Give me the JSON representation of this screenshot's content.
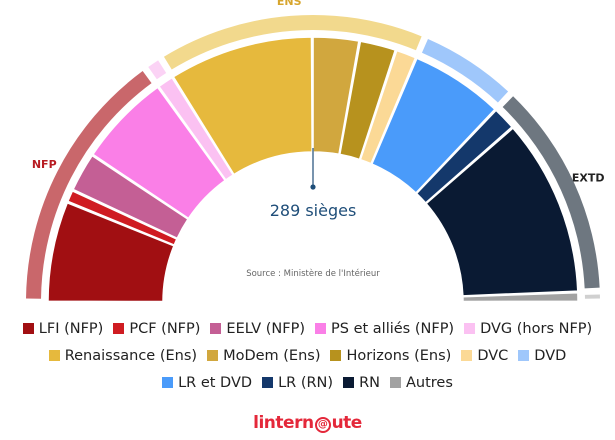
{
  "chart_data": {
    "type": "hemicycle",
    "total_seats": 577,
    "majority_label": "289 sièges",
    "source": "Source : Ministère de l'Intérieur",
    "parties": [
      {
        "name": "LFI (NFP)",
        "seats": 71,
        "color": "#a10f12"
      },
      {
        "name": "PCF (NFP)",
        "seats": 9,
        "color": "#cf1c22"
      },
      {
        "name": "EELV (NFP)",
        "seats": 28,
        "color": "#c45f95"
      },
      {
        "name": "PS et alliés (NFP)",
        "seats": 66,
        "color": "#fa7fe7"
      },
      {
        "name": "DVG (hors NFP)",
        "seats": 12,
        "color": "#fbc1f2"
      },
      {
        "name": "Renaissance (Ens)",
        "seats": 102,
        "color": "#e6b93d"
      },
      {
        "name": "MoDem (Ens)",
        "seats": 33,
        "color": "#d1a73e"
      },
      {
        "name": "Horizons (Ens)",
        "seats": 26,
        "color": "#b7921e"
      },
      {
        "name": "DVC",
        "seats": 15,
        "color": "#fbd996"
      },
      {
        "name": "LR et DVD",
        "seats": 66,
        "color": "#4a9bfa"
      },
      {
        "name": "LR (RN)",
        "seats": 17,
        "color": "#14386b"
      },
      {
        "name": "RN",
        "seats": 125,
        "color": "#0a1a33"
      },
      {
        "name": "Autres",
        "seats": 7,
        "color": "#a2a2a2"
      }
    ],
    "outer_bands": [
      {
        "name": "NFP",
        "seats": 174,
        "color": "#c9676b",
        "label_color": "#b81c22"
      },
      {
        "name": "DVG",
        "seats": 12,
        "color": "#fbd3f5",
        "label_color": "#f07fe0"
      },
      {
        "name": "ENS",
        "seats": 176,
        "color": "#f2d98d",
        "label_color": "#d7a52d"
      },
      {
        "name": "DVD",
        "seats": 66,
        "color": "#9fc7fb",
        "label_color": "#4a9bfa"
      },
      {
        "name": "EXTD",
        "seats": 142,
        "color": "#6e7780",
        "label_color": "#222222"
      },
      {
        "name": "AUT",
        "seats": 7,
        "color": "#d0d0d0",
        "label_color": "#888888"
      }
    ],
    "band_labels_shown": [
      "NFP",
      "ENS",
      "EXTD"
    ]
  },
  "legend": {
    "rows": [
      [
        {
          "label": "LFI (NFP)",
          "color": "#a10f12"
        },
        {
          "label": "PCF (NFP)",
          "color": "#cf1c22"
        },
        {
          "label": "EELV (NFP)",
          "color": "#c45f95"
        },
        {
          "label": "PS et alliés (NFP)",
          "color": "#fa7fe7"
        },
        {
          "label": "DVG (hors NFP)",
          "color": "#fbc1f2"
        }
      ],
      [
        {
          "label": "Renaissance (Ens)",
          "color": "#e6b93d"
        },
        {
          "label": "MoDem (Ens)",
          "color": "#d1a73e"
        },
        {
          "label": "Horizons (Ens)",
          "color": "#b7921e"
        },
        {
          "label": "DVC",
          "color": "#fbd996"
        },
        {
          "label": "DVD",
          "color": "#9fc7fb"
        }
      ],
      [
        {
          "label": "LR et DVD",
          "color": "#4a9bfa"
        },
        {
          "label": "LR (RN)",
          "color": "#14386b"
        },
        {
          "label": "RN",
          "color": "#0a1a33"
        },
        {
          "label": "Autres",
          "color": "#a2a2a2"
        }
      ]
    ]
  },
  "brand": {
    "part1": "l",
    "part2": "intern",
    "part3": "ute",
    "at_glyph": "@"
  }
}
